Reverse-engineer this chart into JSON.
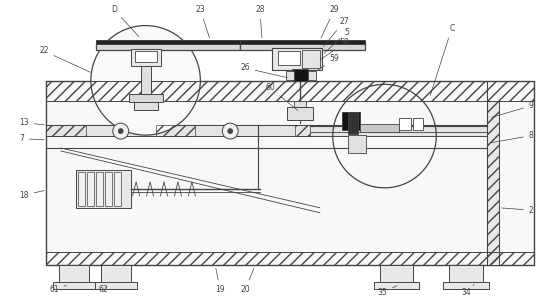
{
  "bg_color": "#ffffff",
  "lc": "#444444",
  "tc": "#444444",
  "fs": 5.5,
  "fig_width": 5.58,
  "fig_height": 3.08,
  "dpi": 100
}
